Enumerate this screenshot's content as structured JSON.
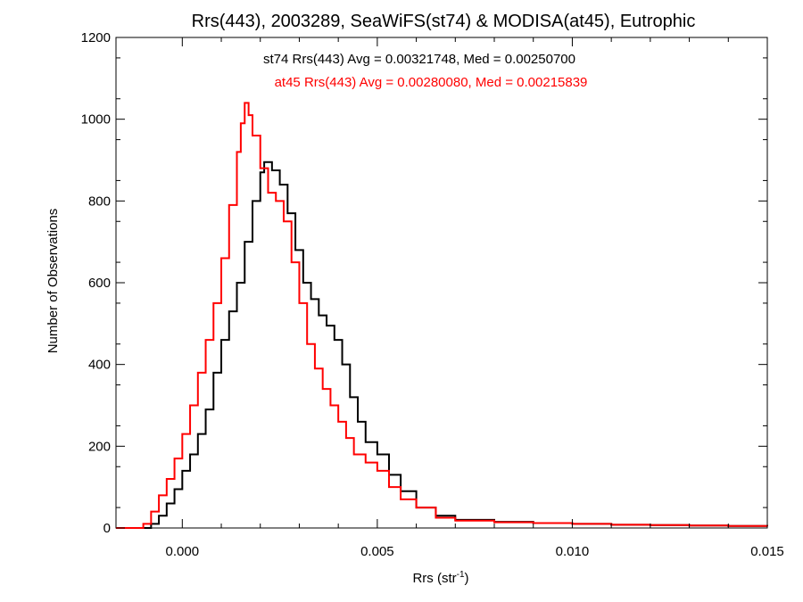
{
  "chart_data": {
    "type": "line",
    "title": "Rrs(443), 2003289, SeaWiFS(st74) & MODISA(at45), Eutrophic",
    "xlabel_main": "Rrs (str",
    "xlabel_sup": "-1",
    "xlabel_tail": ")",
    "ylabel": "Number of Observations",
    "xlim": [
      -0.0017,
      0.015
    ],
    "ylim": [
      0,
      1200
    ],
    "xticks": [
      0.0,
      0.005,
      0.01,
      0.015
    ],
    "xtick_labels": [
      "0.000",
      "0.005",
      "0.010",
      "0.015"
    ],
    "yticks": [
      0,
      200,
      400,
      600,
      800,
      1000,
      1200
    ],
    "ytick_labels": [
      "0",
      "200",
      "400",
      "600",
      "800",
      "1000",
      "1200"
    ],
    "grid": false,
    "step": true,
    "series": [
      {
        "name": "st74 Rrs(443) Avg = 0.00321748, Med = 0.00250700",
        "color": "#000000",
        "points": [
          [
            -0.0017,
            0
          ],
          [
            -0.0012,
            0
          ],
          [
            -0.0008,
            10
          ],
          [
            -0.0006,
            30
          ],
          [
            -0.0004,
            60
          ],
          [
            -0.0002,
            95
          ],
          [
            0.0,
            140
          ],
          [
            0.0002,
            180
          ],
          [
            0.0004,
            230
          ],
          [
            0.0006,
            290
          ],
          [
            0.0008,
            380
          ],
          [
            0.001,
            460
          ],
          [
            0.0012,
            530
          ],
          [
            0.0014,
            600
          ],
          [
            0.0016,
            700
          ],
          [
            0.0018,
            800
          ],
          [
            0.002,
            870
          ],
          [
            0.0021,
            895
          ],
          [
            0.0023,
            875
          ],
          [
            0.0025,
            840
          ],
          [
            0.0027,
            770
          ],
          [
            0.0029,
            680
          ],
          [
            0.0031,
            600
          ],
          [
            0.0033,
            560
          ],
          [
            0.0035,
            520
          ],
          [
            0.0037,
            495
          ],
          [
            0.0039,
            460
          ],
          [
            0.0041,
            400
          ],
          [
            0.0043,
            320
          ],
          [
            0.0045,
            260
          ],
          [
            0.0047,
            210
          ],
          [
            0.005,
            180
          ],
          [
            0.0053,
            130
          ],
          [
            0.0056,
            90
          ],
          [
            0.006,
            50
          ],
          [
            0.0065,
            30
          ],
          [
            0.007,
            20
          ],
          [
            0.008,
            15
          ],
          [
            0.009,
            12
          ],
          [
            0.01,
            10
          ],
          [
            0.011,
            8
          ],
          [
            0.012,
            7
          ],
          [
            0.013,
            6
          ],
          [
            0.014,
            5
          ],
          [
            0.015,
            4
          ]
        ]
      },
      {
        "name": "at45 Rrs(443) Avg = 0.00280080, Med = 0.00215839",
        "color": "#ff0000",
        "points": [
          [
            -0.0017,
            0
          ],
          [
            -0.0012,
            0
          ],
          [
            -0.001,
            10
          ],
          [
            -0.0008,
            40
          ],
          [
            -0.0006,
            80
          ],
          [
            -0.0004,
            120
          ],
          [
            -0.0002,
            170
          ],
          [
            0.0,
            230
          ],
          [
            0.0002,
            300
          ],
          [
            0.0004,
            380
          ],
          [
            0.0006,
            460
          ],
          [
            0.0008,
            550
          ],
          [
            0.001,
            660
          ],
          [
            0.0012,
            790
          ],
          [
            0.0014,
            920
          ],
          [
            0.0015,
            990
          ],
          [
            0.0016,
            1040
          ],
          [
            0.0017,
            1010
          ],
          [
            0.0018,
            960
          ],
          [
            0.002,
            880
          ],
          [
            0.0022,
            820
          ],
          [
            0.0024,
            800
          ],
          [
            0.0026,
            750
          ],
          [
            0.0028,
            650
          ],
          [
            0.003,
            550
          ],
          [
            0.0032,
            450
          ],
          [
            0.0034,
            390
          ],
          [
            0.0036,
            340
          ],
          [
            0.0038,
            300
          ],
          [
            0.004,
            260
          ],
          [
            0.0042,
            220
          ],
          [
            0.0044,
            180
          ],
          [
            0.0047,
            160
          ],
          [
            0.005,
            140
          ],
          [
            0.0053,
            100
          ],
          [
            0.0056,
            70
          ],
          [
            0.006,
            50
          ],
          [
            0.0065,
            25
          ],
          [
            0.007,
            18
          ],
          [
            0.008,
            14
          ],
          [
            0.009,
            12
          ],
          [
            0.01,
            10
          ],
          [
            0.011,
            8
          ],
          [
            0.012,
            7
          ],
          [
            0.013,
            6
          ],
          [
            0.014,
            5
          ],
          [
            0.015,
            4
          ]
        ]
      }
    ]
  }
}
